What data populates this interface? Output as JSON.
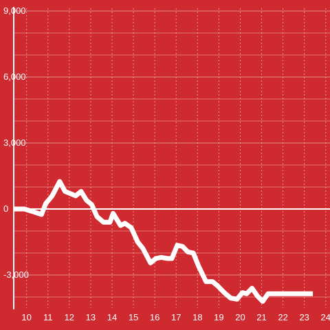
{
  "chart_data": {
    "type": "line",
    "background_color": "#cf2a30",
    "line_color": "#ffffff",
    "xlim": [
      9.4,
      24.2
    ],
    "ylim": [
      -4500,
      9000
    ],
    "x_ticks": [
      10,
      11,
      12,
      13,
      14,
      15,
      16,
      17,
      18,
      19,
      20,
      21,
      22,
      23,
      24
    ],
    "y_ticks": [
      -3000,
      0,
      3000,
      6000,
      9000
    ],
    "y_tick_labels": [
      "-3,000",
      "0",
      "3,000",
      "6,000",
      "9,000"
    ],
    "y_minor_ticks": [
      -4000,
      -2000,
      -1000,
      1000,
      2000,
      4000,
      5000,
      7000,
      8000
    ],
    "grid": true,
    "series": [
      {
        "x": [
          9.4,
          9.9,
          10.4,
          10.7,
          10.9,
          11.2,
          11.55,
          11.8,
          12.3,
          12.55,
          12.8,
          13.05,
          13.3,
          13.6,
          13.9,
          14.05,
          14.4,
          14.6,
          14.9,
          15.2,
          15.45,
          15.8,
          16.05,
          16.3,
          16.6,
          16.8,
          17.05,
          17.3,
          17.55,
          17.8,
          18.05,
          18.4,
          18.7,
          18.95,
          19.25,
          19.55,
          19.85,
          20.1,
          20.3,
          20.55,
          20.8,
          21.05,
          21.3,
          21.6,
          21.8,
          22.1,
          22.5,
          23.0,
          23.4
        ],
        "y": [
          0,
          0,
          -150,
          -250,
          250,
          600,
          1250,
          800,
          600,
          800,
          400,
          200,
          -350,
          -600,
          -600,
          -200,
          -750,
          -650,
          -850,
          -1500,
          -1800,
          -2450,
          -2250,
          -2200,
          -2250,
          -2250,
          -1650,
          -1700,
          -1950,
          -2000,
          -2600,
          -3300,
          -3300,
          -3500,
          -3800,
          -4050,
          -4100,
          -3800,
          -3850,
          -3600,
          -3950,
          -4200,
          -3850,
          -3850,
          -3850,
          -3850,
          -3850,
          -3850,
          -3850
        ]
      }
    ]
  }
}
